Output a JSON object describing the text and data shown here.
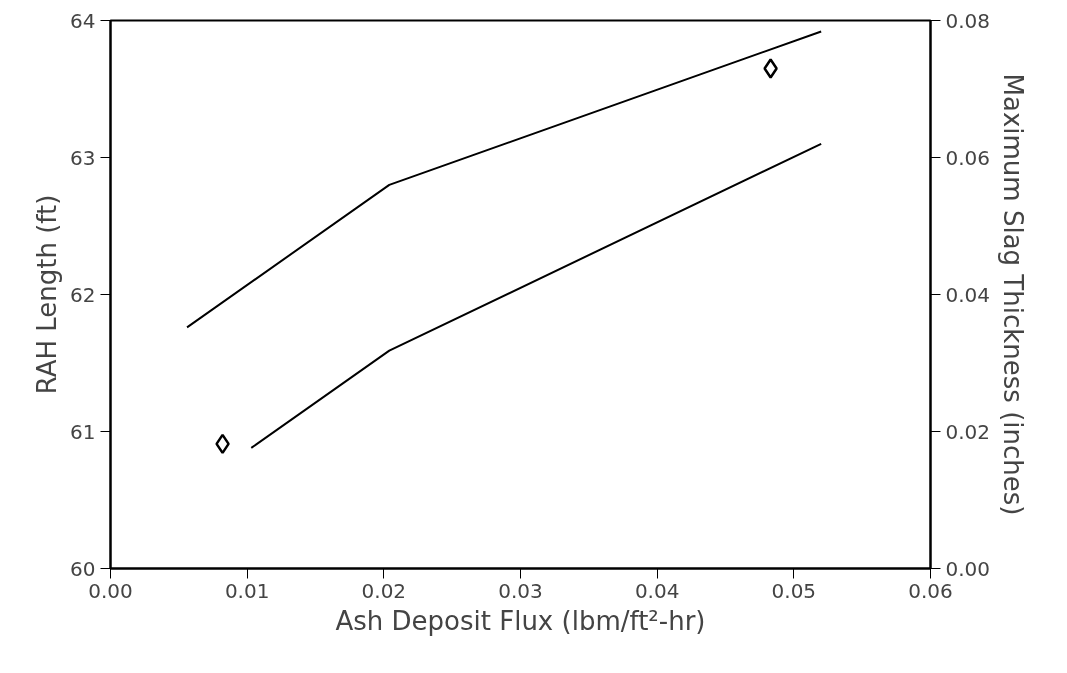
{
  "chart_data": {
    "type": "line",
    "xlabel": "Ash Deposit Flux (lbm/ft²-hr)",
    "ylabel": "RAH Length (ft)",
    "y2label": "Maximum Slag Thickness (inches)",
    "xlim": [
      0,
      0.06
    ],
    "xticks": [
      {
        "value": 0,
        "label": "0.00"
      },
      0.01,
      0.02,
      0.03,
      0.04,
      0.05,
      {
        "value": 0.06,
        "label": "0.06"
      }
    ],
    "ylim": [
      60,
      64
    ],
    "yticks": [
      60,
      61,
      62,
      63,
      64
    ],
    "y2lim": [
      0,
      0.08
    ],
    "y2ticks": [
      {
        "value": 0,
        "label": "0.00"
      },
      0.02,
      0.04,
      0.06,
      0.08
    ],
    "grid": false,
    "series": [
      {
        "color": "#000000",
        "x": [
          0.0056,
          0.0204,
          0.052
        ],
        "values": [
          61.76,
          62.8,
          63.92
        ]
      },
      {
        "color": "#000000",
        "axis": "y2",
        "x": [
          0.0103,
          0.0204,
          0.052
        ],
        "values": [
          0.0176,
          0.0318,
          0.062
        ]
      },
      {
        "type": "scatter",
        "color": "#000000",
        "marker": "diamond",
        "x": [
          0.0082,
          0.0483
        ],
        "values": [
          60.91,
          63.65
        ]
      }
    ]
  }
}
